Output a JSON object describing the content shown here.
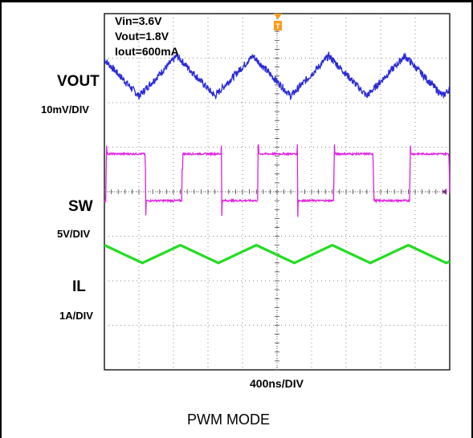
{
  "conditions": [
    "Vin=3.6V",
    "Vout=1.8V",
    "Iout=600mA"
  ],
  "trigger_marker": "T",
  "caption": "PWM MODE",
  "chart_data": {
    "type": "line",
    "title": "PWM MODE",
    "xlabel": "400ns/DIV",
    "ylabel": "",
    "grid": true,
    "xlim": [
      0,
      4000
    ],
    "x_units": "ns",
    "divisions": {
      "x": 10,
      "y": 8
    },
    "series": [
      {
        "name": "VOUT",
        "scale": "10mV/DIV",
        "color": "#2a2ad8",
        "waveform": "triangle-ripple",
        "period_ns": 880,
        "peak_to_peak_div": 0.9,
        "center_div": 6.6,
        "phase_ns": 400,
        "noise": true
      },
      {
        "name": "SW",
        "scale": "5V/DIV",
        "color": "#e020e0",
        "waveform": "square",
        "period_ns": 880,
        "duty": 0.52,
        "high_div": 4.85,
        "low_div": 3.8,
        "first_edge_ns": 20
      },
      {
        "name": "IL",
        "scale": "1A/DIV",
        "color": "#22dd22",
        "waveform": "triangle",
        "period_ns": 880,
        "peak_to_peak_div": 0.4,
        "center_div": 2.6,
        "phase_ns": 440
      }
    ]
  }
}
